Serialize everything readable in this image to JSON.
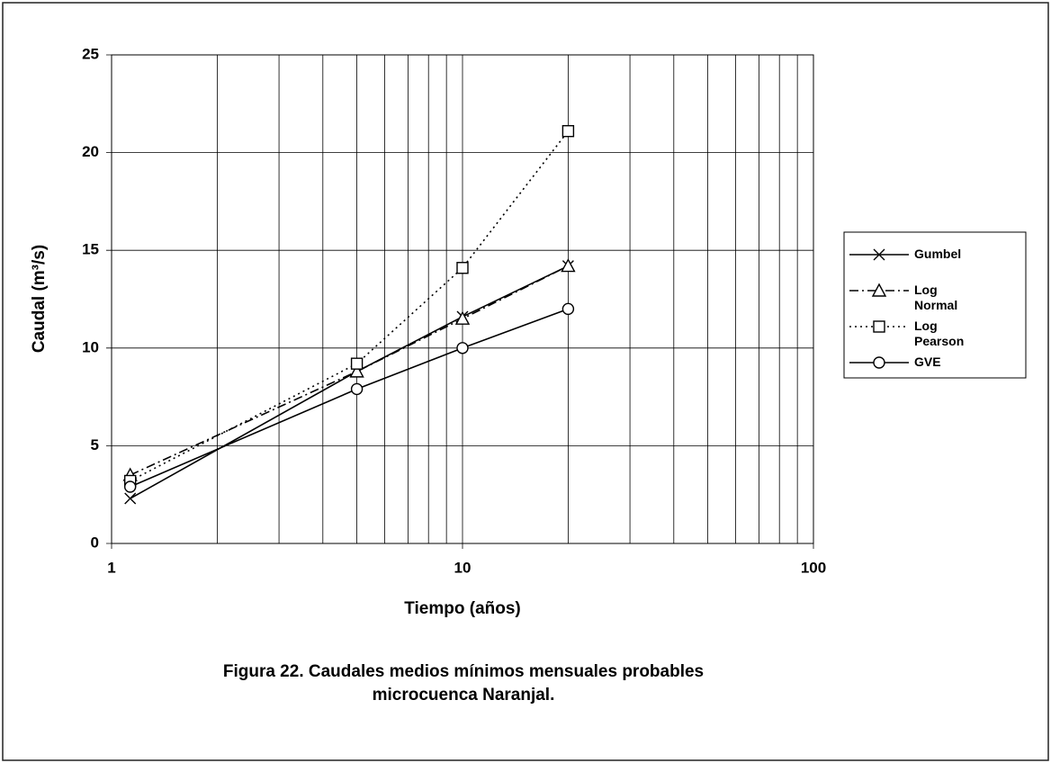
{
  "chart_data": {
    "type": "line",
    "x_label": "Tiempo (años)",
    "y_label": "Caudal (m³/s)",
    "caption": [
      "Figura 22. Caudales medios mínimos  mensuales probables",
      "microcuenca Naranjal."
    ],
    "x": [
      1.13,
      5,
      10,
      20
    ],
    "series": [
      {
        "name": "Gumbel",
        "color": "#000000",
        "line_style": "solid",
        "marker": "x",
        "values": [
          2.3,
          8.8,
          11.6,
          14.2
        ]
      },
      {
        "name": "Log Normal",
        "color": "#000000",
        "line_style": "dashdot",
        "marker": "triangle",
        "values": [
          3.5,
          8.8,
          11.5,
          14.2
        ]
      },
      {
        "name": "Log Pearson",
        "color": "#000000",
        "line_style": "dotted",
        "marker": "square",
        "values": [
          3.2,
          9.2,
          14.1,
          21.1
        ]
      },
      {
        "name": "GVE",
        "color": "#000000",
        "line_style": "solid",
        "marker": "circle",
        "values": [
          2.9,
          7.9,
          10.0,
          12.0
        ]
      }
    ],
    "xscale": "log",
    "xlim": [
      1,
      100
    ],
    "xticks": [
      1,
      10,
      100
    ],
    "xgrid_minor": [
      2,
      3,
      4,
      5,
      6,
      7,
      8,
      9,
      20,
      30,
      40,
      50,
      60,
      70,
      80,
      90
    ],
    "ylim": [
      0,
      25
    ],
    "yticks": [
      0,
      5,
      10,
      15,
      20,
      25
    ],
    "grid": true,
    "legend": "right"
  }
}
